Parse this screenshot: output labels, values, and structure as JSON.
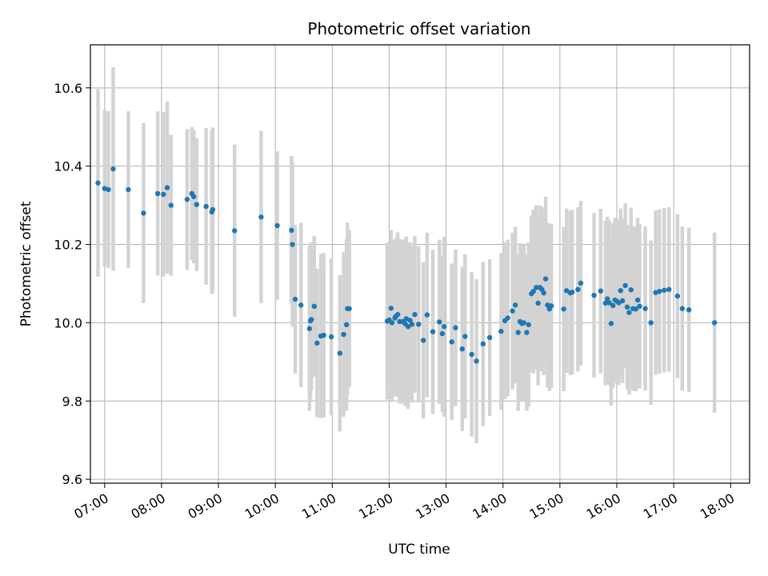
{
  "chart_data": {
    "type": "scatter",
    "title": "Photometric offset variation",
    "xlabel": "UTC time",
    "ylabel": "Photometric offset",
    "x_tick_labels": [
      "07:00",
      "08:00",
      "09:00",
      "10:00",
      "11:00",
      "12:00",
      "13:00",
      "14:00",
      "15:00",
      "16:00",
      "17:00",
      "18:00"
    ],
    "y_tick_labels": [
      "9.6",
      "9.8",
      "10.0",
      "10.2",
      "10.4",
      "10.6"
    ],
    "xlim": [
      "06:45",
      "18:20"
    ],
    "ylim": [
      9.59,
      10.71
    ],
    "grid": true,
    "colors": {
      "points": "#1f77b4",
      "errorbars": "#d3d3d3",
      "grid": "#b0b0b0"
    },
    "series": [
      {
        "x": [
          "06:53",
          "07:00",
          "07:04",
          "07:09",
          "07:25",
          "07:41",
          "07:56",
          "08:02",
          "08:06",
          "08:10",
          "08:27",
          "08:32",
          "08:34",
          "08:37",
          "08:47",
          "08:53",
          "08:54",
          "09:17",
          "09:45",
          "10:02",
          "10:17",
          "10:18",
          "10:21",
          "10:27",
          "10:36",
          "10:37",
          "10:38",
          "10:41",
          "10:44",
          "10:48",
          "10:51",
          "10:59",
          "11:08",
          "11:12",
          "11:15",
          "11:16",
          "11:18",
          "11:58",
          "12:00",
          "12:02",
          "12:03",
          "12:06",
          "12:07",
          "12:09",
          "12:11",
          "12:14",
          "12:17",
          "12:18",
          "12:20",
          "12:22",
          "12:24",
          "12:27",
          "12:31",
          "12:36",
          "12:40",
          "12:46",
          "12:53",
          "12:56",
          "12:58",
          "13:06",
          "13:10",
          "13:17",
          "13:20",
          "13:27",
          "13:32",
          "13:39",
          "13:46",
          "13:58",
          "14:02",
          "14:05",
          "14:10",
          "14:13",
          "14:16",
          "14:18",
          "14:20",
          "14:22",
          "14:25",
          "14:27",
          "14:30",
          "14:32",
          "14:35",
          "14:37",
          "14:39",
          "14:41",
          "14:43",
          "14:45",
          "14:47",
          "14:49",
          "14:51",
          "15:04",
          "15:07",
          "15:11",
          "15:13",
          "15:19",
          "15:22",
          "15:36",
          "15:43",
          "15:48",
          "15:50",
          "15:52",
          "15:54",
          "15:56",
          "15:58",
          "16:00",
          "16:02",
          "16:04",
          "16:06",
          "16:09",
          "16:11",
          "16:13",
          "16:15",
          "16:17",
          "16:20",
          "16:22",
          "16:24",
          "16:30",
          "16:36",
          "16:41",
          "16:45",
          "16:50",
          "16:55",
          "17:04",
          "17:09",
          "17:16",
          "17:43"
        ],
        "y": [
          10.357,
          10.343,
          10.34,
          10.393,
          10.34,
          10.28,
          10.33,
          10.328,
          10.345,
          10.3,
          10.315,
          10.33,
          10.322,
          10.302,
          10.297,
          10.283,
          10.289,
          10.235,
          10.27,
          10.248,
          10.236,
          10.2,
          10.06,
          10.045,
          9.985,
          10.005,
          10.008,
          10.042,
          9.948,
          9.966,
          9.968,
          9.964,
          9.922,
          9.97,
          9.995,
          10.036,
          10.036,
          10.004,
          10.007,
          10.037,
          10.0,
          10.012,
          10.016,
          10.021,
          10.003,
          10.003,
          9.997,
          10.01,
          9.99,
          10.006,
          9.996,
          10.021,
          9.996,
          9.955,
          10.02,
          9.977,
          10.002,
          9.972,
          9.99,
          9.951,
          9.987,
          9.933,
          9.965,
          9.919,
          9.902,
          9.946,
          9.962,
          9.978,
          10.005,
          10.012,
          10.03,
          10.045,
          9.975,
          10.003,
          9.998,
          10.0,
          9.975,
          9.995,
          10.074,
          10.08,
          10.09,
          10.05,
          10.09,
          10.085,
          10.076,
          10.112,
          10.045,
          10.035,
          10.043,
          10.035,
          10.082,
          10.076,
          10.078,
          10.085,
          10.101,
          10.07,
          10.081,
          10.05,
          10.061,
          10.051,
          9.998,
          10.044,
          10.058,
          10.055,
          10.051,
          10.082,
          10.056,
          10.095,
          10.04,
          10.026,
          10.084,
          10.036,
          10.035,
          10.058,
          10.042,
          10.036,
          10.0,
          10.077,
          10.08,
          10.083,
          10.085,
          10.068,
          10.036,
          10.033,
          10.0
        ],
        "yerr": [
          0.24,
          0.2,
          0.2,
          0.26,
          0.2,
          0.23,
          0.21,
          0.21,
          0.22,
          0.18,
          0.18,
          0.17,
          0.17,
          0.17,
          0.2,
          0.21,
          0.21,
          0.22,
          0.22,
          0.19,
          0.19,
          0.21,
          0.19,
          0.21,
          0.21,
          0.2,
          0.18,
          0.18,
          0.19,
          0.21,
          0.21,
          0.2,
          0.2,
          0.21,
          0.22,
          0.22,
          0.2,
          0.2,
          0.2,
          0.2,
          0.2,
          0.2,
          0.2,
          0.21,
          0.21,
          0.21,
          0.21,
          0.21,
          0.21,
          0.2,
          0.2,
          0.2,
          0.2,
          0.2,
          0.21,
          0.21,
          0.21,
          0.2,
          0.23,
          0.2,
          0.2,
          0.21,
          0.21,
          0.21,
          0.21,
          0.21,
          0.2,
          0.2,
          0.2,
          0.2,
          0.2,
          0.2,
          0.2,
          0.2,
          0.2,
          0.2,
          0.2,
          0.21,
          0.2,
          0.21,
          0.21,
          0.21,
          0.21,
          0.21,
          0.21,
          0.21,
          0.21,
          0.21,
          0.21,
          0.21,
          0.21,
          0.21,
          0.21,
          0.21,
          0.21,
          0.21,
          0.21,
          0.21,
          0.21,
          0.21,
          0.21,
          0.21,
          0.21,
          0.21,
          0.21,
          0.21,
          0.21,
          0.21,
          0.21,
          0.21,
          0.21,
          0.21,
          0.21,
          0.21,
          0.21,
          0.21,
          0.21,
          0.21,
          0.21,
          0.21,
          0.21,
          0.21,
          0.21,
          0.21,
          0.23
        ]
      }
    ]
  }
}
